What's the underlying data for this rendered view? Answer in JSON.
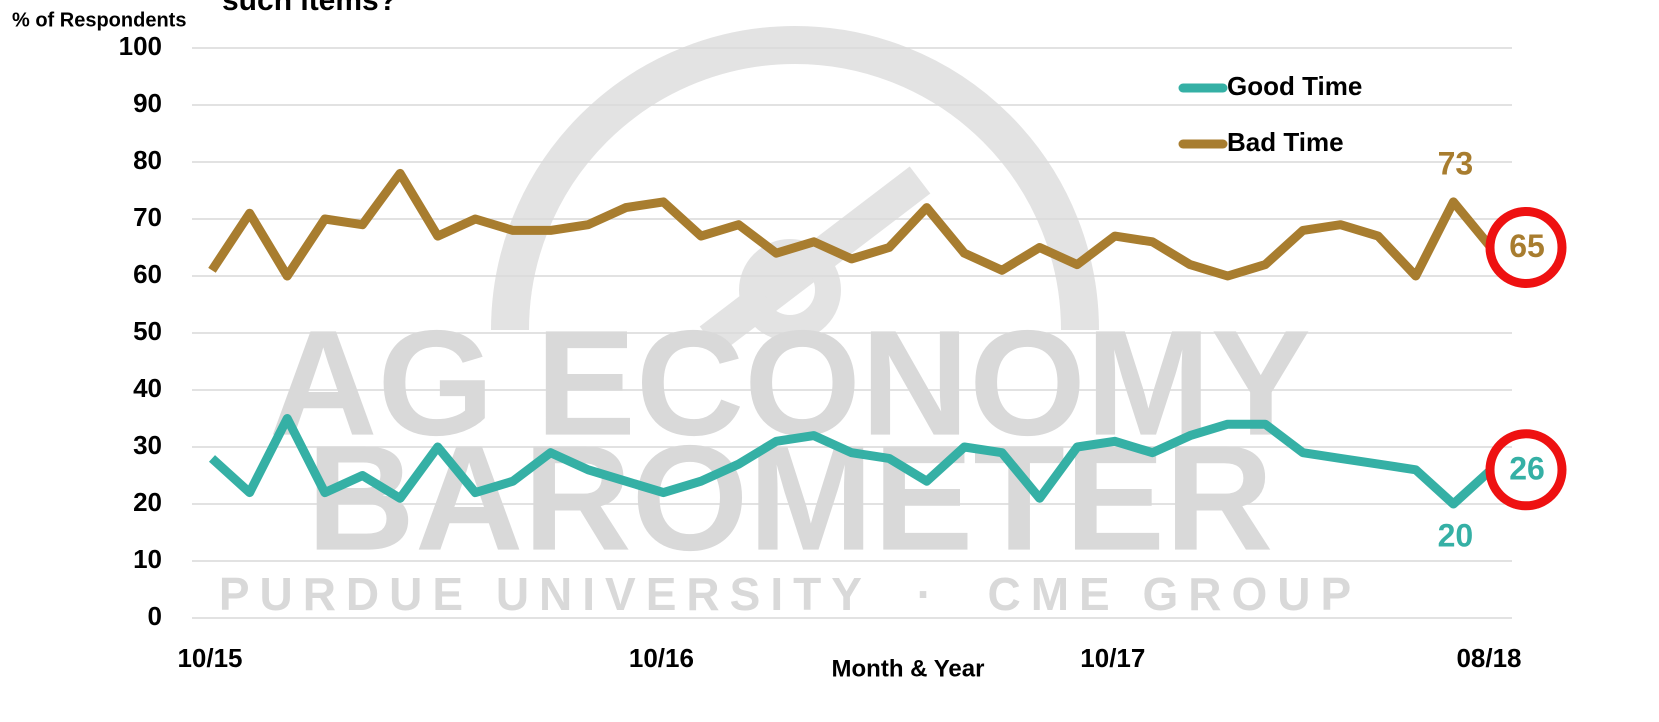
{
  "chart_data": {
    "type": "line",
    "title": "such items?",
    "y_label": "% of Respondents",
    "x_label": "Month & Year",
    "watermark": [
      "AG ECONOMY",
      "BAROMETER",
      "PURDUE UNIVERSITY  ·  CME GROUP"
    ],
    "categories": [
      "10/15",
      null,
      null,
      null,
      null,
      null,
      null,
      null,
      null,
      null,
      null,
      null,
      "10/16",
      null,
      null,
      null,
      null,
      null,
      null,
      null,
      null,
      null,
      null,
      null,
      "10/17",
      null,
      null,
      null,
      null,
      null,
      null,
      null,
      null,
      null,
      "08/18"
    ],
    "series": [
      {
        "name": "Good Time",
        "color": "#35b0a5",
        "labeled_indices": [
          33,
          34
        ],
        "values": [
          28,
          22,
          35,
          22,
          25,
          21,
          30,
          22,
          24,
          29,
          26,
          24,
          22,
          24,
          27,
          31,
          32,
          29,
          28,
          24,
          30,
          29,
          21,
          30,
          31,
          29,
          32,
          34,
          34,
          29,
          28,
          27,
          26,
          20,
          26
        ]
      },
      {
        "name": "Bad Time",
        "color": "#a87d2f",
        "labeled_indices": [
          33,
          34
        ],
        "values": [
          61,
          71,
          60,
          70,
          69,
          78,
          67,
          70,
          68,
          68,
          69,
          72,
          73,
          67,
          69,
          64,
          66,
          63,
          65,
          72,
          64,
          61,
          65,
          62,
          67,
          66,
          62,
          60,
          62,
          68,
          69,
          67,
          60,
          73,
          65
        ]
      }
    ],
    "highlight_index": 34,
    "highlight_color": "#ee1111",
    "ylim": [
      0,
      100
    ],
    "yticks": [
      0,
      10,
      20,
      30,
      40,
      50,
      60,
      70,
      80,
      90,
      100
    ],
    "grid": true,
    "legend": "top-right"
  }
}
